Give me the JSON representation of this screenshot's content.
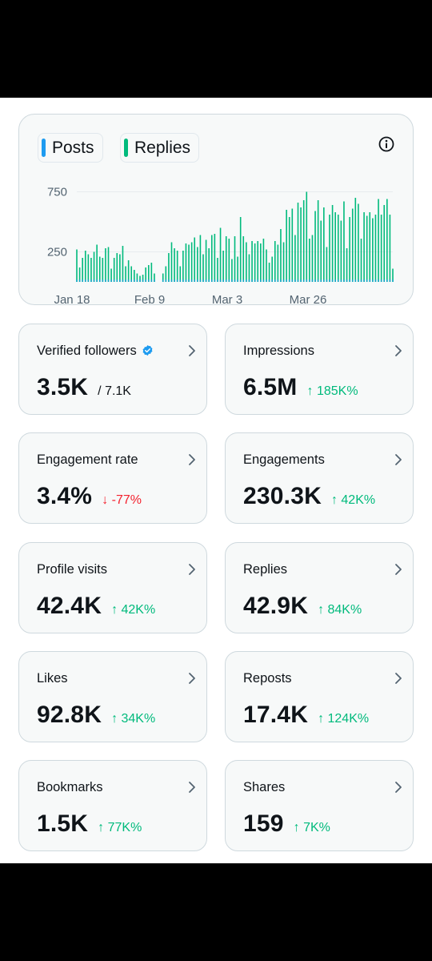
{
  "legend": {
    "posts": {
      "label": "Posts",
      "color": "#1d9bf0"
    },
    "replies": {
      "label": "Replies",
      "color": "#00ba7c"
    }
  },
  "info_icon": "info-circle-icon",
  "chart_data": {
    "type": "bar",
    "title": "",
    "xlabel": "",
    "ylabel": "",
    "x_ticks": [
      "Jan 18",
      "Feb 9",
      "Mar 3",
      "Mar 26"
    ],
    "y_ticks": [
      250,
      750
    ],
    "ylim": [
      0,
      800
    ],
    "grid": true,
    "series": [
      {
        "name": "Replies",
        "color": "#00ba7c",
        "values": [
          270,
          120,
          200,
          260,
          230,
          200,
          250,
          310,
          210,
          200,
          280,
          290,
          110,
          200,
          240,
          230,
          300,
          130,
          180,
          130,
          100,
          70,
          50,
          60,
          120,
          140,
          160,
          70,
          0,
          0,
          70,
          130,
          240,
          330,
          280,
          260,
          130,
          260,
          320,
          310,
          330,
          370,
          290,
          390,
          230,
          350,
          280,
          390,
          400,
          200,
          450,
          260,
          380,
          360,
          190,
          380,
          210,
          540,
          380,
          330,
          230,
          340,
          320,
          340,
          320,
          360,
          270,
          160,
          210,
          340,
          310,
          440,
          330,
          600,
          540,
          610,
          390,
          660,
          620,
          680,
          750,
          360,
          390,
          590,
          680,
          510,
          620,
          290,
          560,
          640,
          580,
          560,
          510,
          670,
          280,
          540,
          610,
          700,
          650,
          360,
          580,
          550,
          580,
          530,
          560,
          690,
          560,
          640,
          690,
          560,
          110
        ]
      },
      {
        "name": "Posts",
        "color": "#1d9bf0",
        "values": [
          20,
          20,
          20,
          20,
          20,
          20,
          20,
          20,
          20,
          20,
          20,
          20,
          20,
          20,
          20,
          20,
          20,
          20,
          20,
          20,
          20,
          20,
          20,
          20,
          20,
          20,
          20,
          20,
          0,
          0,
          20,
          20,
          20,
          20,
          20,
          20,
          20,
          20,
          20,
          20,
          20,
          20,
          20,
          20,
          20,
          20,
          20,
          20,
          20,
          20,
          20,
          20,
          20,
          20,
          20,
          20,
          20,
          20,
          20,
          20,
          20,
          20,
          20,
          20,
          20,
          20,
          20,
          20,
          20,
          20,
          20,
          20,
          20,
          20,
          20,
          20,
          20,
          20,
          20,
          20,
          20,
          20,
          20,
          20,
          20,
          20,
          20,
          20,
          20,
          20,
          20,
          20,
          20,
          20,
          20,
          20,
          20,
          20,
          20,
          20,
          20,
          20,
          20,
          20,
          20,
          20,
          20,
          20,
          20,
          20,
          20
        ]
      }
    ]
  },
  "stats": [
    {
      "label": "Verified followers",
      "value": "3.5K",
      "sub": "/ 7.1K",
      "trend": "neutral",
      "verified": true
    },
    {
      "label": "Impressions",
      "value": "6.5M",
      "sub": "↑ 185K%",
      "trend": "up"
    },
    {
      "label": "Engagement rate",
      "value": "3.4%",
      "sub": "↓ -77%",
      "trend": "down"
    },
    {
      "label": "Engagements",
      "value": "230.3K",
      "sub": "↑ 42K%",
      "trend": "up"
    },
    {
      "label": "Profile visits",
      "value": "42.4K",
      "sub": "↑ 42K%",
      "trend": "up"
    },
    {
      "label": "Replies",
      "value": "42.9K",
      "sub": "↑ 84K%",
      "trend": "up"
    },
    {
      "label": "Likes",
      "value": "92.8K",
      "sub": "↑ 34K%",
      "trend": "up"
    },
    {
      "label": "Reposts",
      "value": "17.4K",
      "sub": "↑ 124K%",
      "trend": "up"
    },
    {
      "label": "Bookmarks",
      "value": "1.5K",
      "sub": "↑ 77K%",
      "trend": "up"
    },
    {
      "label": "Shares",
      "value": "159",
      "sub": "↑ 7K%",
      "trend": "up"
    }
  ]
}
